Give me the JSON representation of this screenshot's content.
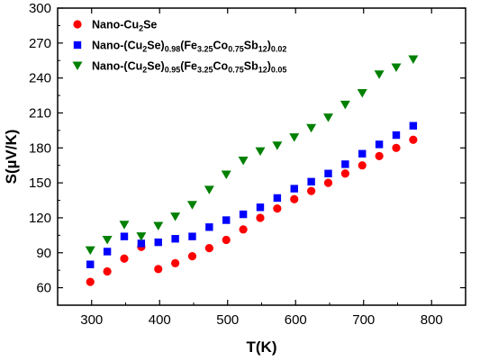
{
  "chart_data": {
    "type": "scatter",
    "xlabel": "T(K)",
    "ylabel": "S(µV/K)",
    "xlim": [
      250,
      850
    ],
    "ylim": [
      45,
      300
    ],
    "xticks": [
      300,
      400,
      500,
      600,
      700,
      800
    ],
    "yticks": [
      60,
      90,
      120,
      150,
      180,
      210,
      240,
      270,
      300
    ],
    "grid": false,
    "legend_position": "top-left",
    "series": [
      {
        "name": "Nano-Cu2Se",
        "legend_parts": [
          {
            "t": "Nano-Cu",
            "s": "n"
          },
          {
            "t": "2",
            "s": "sub"
          },
          {
            "t": "Se",
            "s": "n"
          }
        ],
        "marker": "circle",
        "color": "#ff0000",
        "x": [
          298,
          323,
          348,
          373,
          398,
          423,
          448,
          473,
          498,
          523,
          548,
          573,
          598,
          623,
          648,
          673,
          698,
          723,
          748,
          773
        ],
        "y": [
          65,
          74,
          85,
          95,
          76,
          81,
          87,
          94,
          101,
          110,
          120,
          128,
          136,
          143,
          150,
          158,
          165,
          173,
          180,
          187
        ]
      },
      {
        "name": "Nano-(Cu2Se)0.98(Fe3.25Co0.75Sb12)0.02",
        "legend_parts": [
          {
            "t": "Nano-(Cu",
            "s": "n"
          },
          {
            "t": "2",
            "s": "sub"
          },
          {
            "t": "Se)",
            "s": "n"
          },
          {
            "t": "0.98",
            "s": "sub"
          },
          {
            "t": "(Fe",
            "s": "n"
          },
          {
            "t": "3.25",
            "s": "sub"
          },
          {
            "t": "Co",
            "s": "n"
          },
          {
            "t": "0.75",
            "s": "sub"
          },
          {
            "t": "Sb",
            "s": "n"
          },
          {
            "t": "12",
            "s": "sub"
          },
          {
            "t": ")",
            "s": "n"
          },
          {
            "t": "0.02",
            "s": "sub"
          }
        ],
        "marker": "square",
        "color": "#0000ff",
        "x": [
          298,
          323,
          348,
          373,
          398,
          423,
          448,
          473,
          498,
          523,
          548,
          573,
          598,
          623,
          648,
          673,
          698,
          723,
          748,
          773
        ],
        "y": [
          80,
          91,
          104,
          98,
          99,
          102,
          104,
          112,
          118,
          123,
          129,
          137,
          145,
          151,
          158,
          166,
          175,
          183,
          191,
          199
        ]
      },
      {
        "name": "Nano-(Cu2Se)0.95(Fe3.25Co0.75Sb12)0.05",
        "legend_parts": [
          {
            "t": "Nano-(Cu",
            "s": "n"
          },
          {
            "t": "2",
            "s": "sub"
          },
          {
            "t": "Se)",
            "s": "n"
          },
          {
            "t": "0.95",
            "s": "sub"
          },
          {
            "t": "(Fe",
            "s": "n"
          },
          {
            "t": "3.25",
            "s": "sub"
          },
          {
            "t": "Co",
            "s": "n"
          },
          {
            "t": "0.75",
            "s": "sub"
          },
          {
            "t": "Sb",
            "s": "n"
          },
          {
            "t": "12",
            "s": "sub"
          },
          {
            "t": ")",
            "s": "n"
          },
          {
            "t": "0.05",
            "s": "sub"
          }
        ],
        "marker": "triangle-down",
        "color": "#008000",
        "x": [
          298,
          323,
          348,
          373,
          398,
          423,
          448,
          473,
          498,
          523,
          548,
          573,
          598,
          623,
          648,
          673,
          698,
          723,
          748,
          773
        ],
        "y": [
          92,
          101,
          114,
          104,
          113,
          121,
          131,
          144,
          157,
          169,
          177,
          182,
          189,
          197,
          206,
          217,
          227,
          243,
          249,
          256
        ]
      }
    ]
  }
}
